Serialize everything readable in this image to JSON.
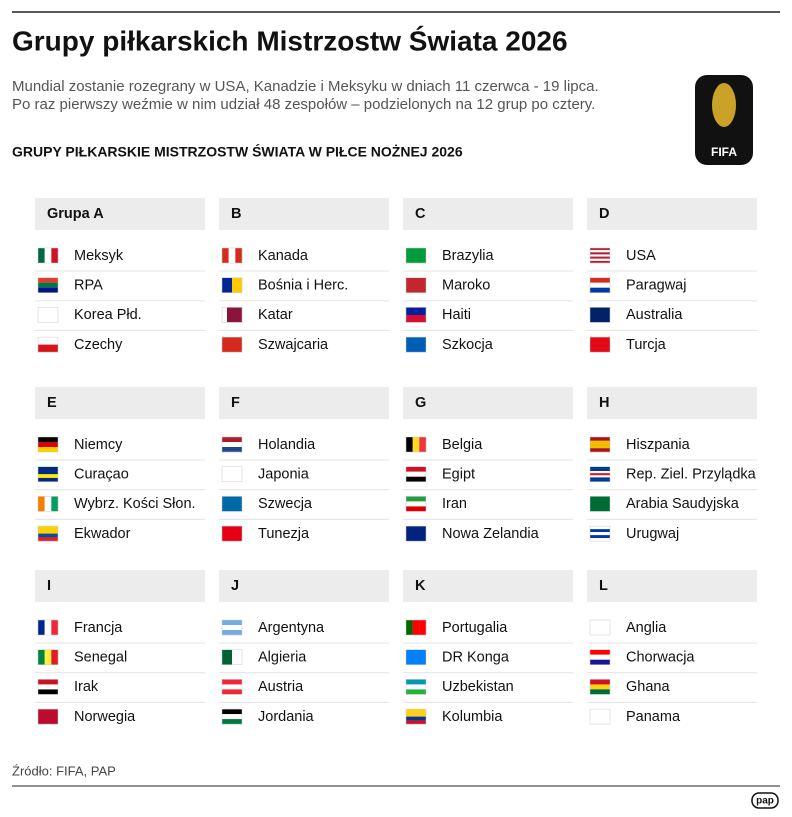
{
  "header": {
    "title": "Grupy piłkarskich Mistrzostw Świata 2026",
    "subtitle": [
      "Mundial zostanie rozegrany w USA, Kanadzie i Meksyku w dniach 11 czerwca - 19 lipca.",
      "Po raz pierwszy weźmie w nim udział 48 zespołów – podzielonych na 12 grup po cztery."
    ],
    "section_title": "GRUPY PIŁKARSKIE MISTRZOSTW ŚWIATA W PIŁCE NOŻNEJ 2026"
  },
  "badge": {
    "label": "FIFA"
  },
  "groups": [
    {
      "name": "Grupa A",
      "teams": [
        "Meksyk",
        "RPA",
        "Korea Płd.",
        "Czechy"
      ]
    },
    {
      "name": "B",
      "teams": [
        "Kanada",
        "Bośnia i Herc.",
        "Katar",
        "Szwajcaria"
      ]
    },
    {
      "name": "C",
      "teams": [
        "Brazylia",
        "Maroko",
        "Haiti",
        "Szkocja"
      ]
    },
    {
      "name": "D",
      "teams": [
        "USA",
        "Paragwaj",
        "Australia",
        "Turcja"
      ]
    },
    {
      "name": "E",
      "teams": [
        "Niemcy",
        "Curaçao",
        "Wybrz. Kości Słon.",
        "Ekwador"
      ]
    },
    {
      "name": "F",
      "teams": [
        "Holandia",
        "Japonia",
        "Szwecja",
        "Tunezja"
      ]
    },
    {
      "name": "G",
      "teams": [
        "Belgia",
        "Egipt",
        "Iran",
        "Nowa Zelandia"
      ]
    },
    {
      "name": "H",
      "teams": [
        "Hiszpania",
        "Rep. Ziel. Przylądka",
        "Arabia Saudyjska",
        "Urugwaj"
      ]
    },
    {
      "name": "I",
      "teams": [
        "Francja",
        "Senegal",
        "Irak",
        "Norwegia"
      ]
    },
    {
      "name": "J",
      "teams": [
        "Argentyna",
        "Algieria",
        "Austria",
        "Jordania"
      ]
    },
    {
      "name": "K",
      "teams": [
        "Portugalia",
        "DR Konga",
        "Uzbekistan",
        "Kolumbia"
      ]
    },
    {
      "name": "L",
      "teams": [
        "Anglia",
        "Chorwacja",
        "Ghana",
        "Panama"
      ]
    }
  ],
  "footer": {
    "source": "Źródło: FIFA, PAP",
    "logo": "pap"
  }
}
